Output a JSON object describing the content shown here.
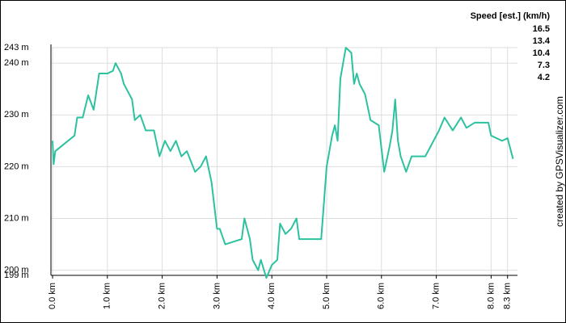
{
  "chart_data": {
    "type": "line",
    "x": [
      0.0,
      0.02,
      0.05,
      0.4,
      0.45,
      0.55,
      0.65,
      0.75,
      0.85,
      1.0,
      1.1,
      1.15,
      1.25,
      1.3,
      1.45,
      1.5,
      1.6,
      1.7,
      1.85,
      1.95,
      2.05,
      2.15,
      2.25,
      2.35,
      2.45,
      2.6,
      2.7,
      2.8,
      2.9,
      3.0,
      3.05,
      3.15,
      3.3,
      3.45,
      3.5,
      3.6,
      3.65,
      3.75,
      3.8,
      3.9,
      4.0,
      4.1,
      4.15,
      4.25,
      4.35,
      4.45,
      4.5,
      4.7,
      4.9,
      5.0,
      5.1,
      5.15,
      5.2,
      5.25,
      5.35,
      5.45,
      5.5,
      5.55,
      5.6,
      5.7,
      5.8,
      5.95,
      6.05,
      6.15,
      6.2,
      6.25,
      6.3,
      6.35,
      6.45,
      6.55,
      6.8,
      6.95,
      7.05,
      7.15,
      7.3,
      7.45,
      7.55,
      7.7,
      7.95,
      8.0,
      8.2,
      8.3,
      8.4
    ],
    "series": [
      {
        "color": "#2cc2a0",
        "values": [
          225,
          220.5,
          223,
          226,
          229.5,
          229.5,
          233.8,
          231,
          238,
          238,
          238.5,
          240,
          238,
          236,
          233,
          229,
          230,
          227,
          227,
          222,
          225,
          223,
          225,
          222,
          223,
          219,
          220,
          222,
          217,
          208,
          208,
          205,
          205.5,
          206,
          210,
          206,
          202,
          200,
          202,
          198.5,
          201,
          202,
          209,
          207,
          208,
          210,
          206,
          206,
          206,
          220,
          226,
          228,
          225,
          237,
          243,
          242,
          236,
          238,
          236,
          234,
          229,
          228,
          219,
          224,
          227,
          233,
          225,
          222,
          219,
          222,
          222,
          225,
          227,
          229.5,
          227,
          229.5,
          227.5,
          228.5,
          228.5,
          226,
          225,
          225.5,
          221.5
        ]
      }
    ],
    "xlim": [
      0,
      8.4
    ],
    "ylim": [
      199,
      243
    ],
    "xticks": [
      {
        "value": 0,
        "label": "0.0 km"
      },
      {
        "value": 1,
        "label": "1.0 km"
      },
      {
        "value": 2,
        "label": "2.0 km"
      },
      {
        "value": 3,
        "label": "3.0 km"
      },
      {
        "value": 4,
        "label": "4.0 km"
      },
      {
        "value": 5,
        "label": "5.0 km"
      },
      {
        "value": 6,
        "label": "6.0 km"
      },
      {
        "value": 7,
        "label": "7.0 km"
      },
      {
        "value": 8,
        "label": "8.0 km"
      },
      {
        "value": 8.3,
        "label": "8.3 km"
      }
    ],
    "yticks": [
      {
        "value": 243,
        "label": "243 m"
      },
      {
        "value": 240,
        "label": "240 m"
      },
      {
        "value": 230,
        "label": "230 m"
      },
      {
        "value": 220,
        "label": "220 m"
      },
      {
        "value": 210,
        "label": "210 m"
      },
      {
        "value": 200,
        "label": "200 m"
      },
      {
        "value": 199,
        "label": "199 m"
      }
    ],
    "grid": true,
    "legend": {
      "title": "Speed [est.] (km/h)",
      "items": [
        {
          "value": 16.5,
          "color": "#9900cc"
        },
        {
          "value": 13.4,
          "color": "#1a3fbf"
        },
        {
          "value": 10.4,
          "color": "#22c070"
        },
        {
          "value": 7.3,
          "color": "#c0c000"
        },
        {
          "value": 4.2,
          "color": "#cc0000"
        }
      ]
    },
    "credit": "created by GPSVisualizer.com"
  }
}
